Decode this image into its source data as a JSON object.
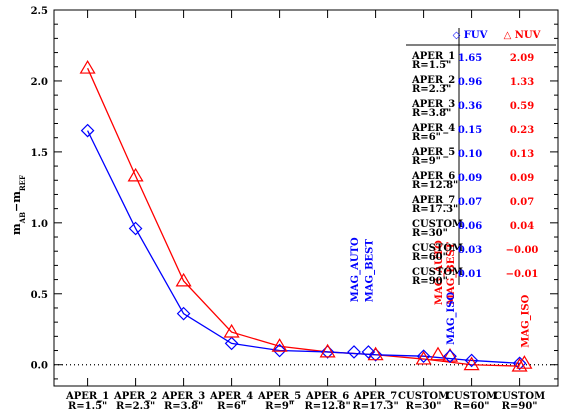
{
  "chart_data": {
    "type": "line",
    "ylabel_main": "m",
    "ylabel_sub1": "AB",
    "ylabel_sep": "−m",
    "ylabel_sub2": "REF",
    "ylim": [
      -0.15,
      2.5
    ],
    "yticks": [
      "0.0",
      "0.5",
      "1.0",
      "1.5",
      "2.0",
      "2.5"
    ],
    "ytick_values": [
      0.0,
      0.5,
      1.0,
      1.5,
      2.0,
      2.5
    ],
    "categories": [
      {
        "line1": "APER_1",
        "line2": "R=1.5\""
      },
      {
        "line1": "APER_2",
        "line2": "R=2.3\""
      },
      {
        "line1": "APER_3",
        "line2": "R=3.8\""
      },
      {
        "line1": "APER_4",
        "line2": "R=6\""
      },
      {
        "line1": "APER_5",
        "line2": "R=9\""
      },
      {
        "line1": "APER_6",
        "line2": "R=12.8\""
      },
      {
        "line1": "APER_7",
        "line2": "R=17.3\""
      },
      {
        "line1": "CUSTOM",
        "line2": "R=30\""
      },
      {
        "line1": "CUSTOM",
        "line2": "R=60\""
      },
      {
        "line1": "CUSTOM",
        "line2": "R=90\""
      }
    ],
    "series": [
      {
        "name": "FUV",
        "symbol": "◇",
        "color": "#0000ff",
        "values": [
          1.65,
          0.96,
          0.36,
          0.15,
          0.1,
          0.09,
          0.07,
          0.06,
          0.03,
          0.01
        ]
      },
      {
        "name": "NUV",
        "symbol": "△",
        "color": "#ff0000",
        "values": [
          2.09,
          1.33,
          0.59,
          0.23,
          0.13,
          0.09,
          0.07,
          0.04,
          -0.0,
          -0.01
        ]
      }
    ],
    "table_values": {
      "FUV": [
        "1.65",
        "0.96",
        "0.36",
        "0.15",
        "0.10",
        "0.09",
        "0.07",
        "0.06",
        "0.03",
        "0.01"
      ],
      "NUV": [
        "2.09",
        "1.33",
        "0.59",
        "0.23",
        "0.13",
        "0.09",
        "0.07",
        "0.04",
        "−0.00",
        "−0.01"
      ]
    },
    "extra_points": [
      {
        "series": "FUV",
        "x": 5.55,
        "y": 0.09,
        "label": "MAG_AUTO",
        "label_y": 0.44
      },
      {
        "series": "FUV",
        "x": 5.85,
        "y": 0.09,
        "label": "MAG_BEST",
        "label_y": 0.44
      },
      {
        "series": "NUV",
        "x": 7.3,
        "y": 0.07,
        "label": "MAG_AUTO",
        "label_y": 0.42
      },
      {
        "series": "NUV",
        "x": 7.55,
        "y": 0.06,
        "label": "MAG_BEST",
        "label_y": 0.42
      },
      {
        "series": "FUV",
        "x": 7.55,
        "y": 0.06,
        "label": "MAG_ISO",
        "label_y": 0.14
      },
      {
        "series": "NUV",
        "x": 9.1,
        "y": 0.01,
        "label": "MAG_ISO",
        "label_y": 0.12
      }
    ],
    "reference_line": 0.0,
    "grid": false,
    "legend_position": "top-right"
  }
}
